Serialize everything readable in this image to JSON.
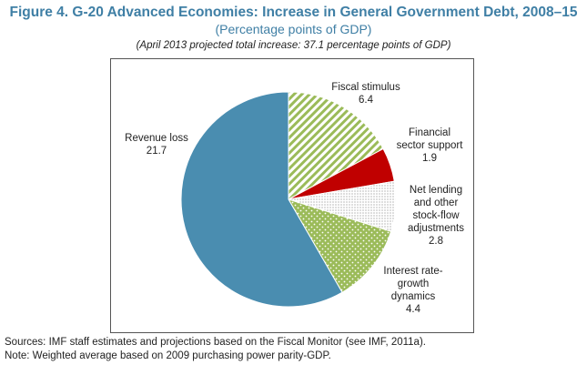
{
  "chart_data": {
    "type": "pie",
    "title": "Figure 4. G-20 Advanced Economies: Increase in General Government Debt, 2008–15",
    "subtitle": "(Percentage points of GDP)",
    "annotation": "(April 2013 projected total increase: 37.1 percentage points of GDP)",
    "slices": [
      {
        "label": "Fiscal stimulus",
        "value": 6.4,
        "value_text": "6.4",
        "color": "#9bbb59",
        "pattern": "diagonal-stripes"
      },
      {
        "label": "Financial sector support",
        "value": 1.9,
        "value_text": "1.9",
        "color": "#c00000",
        "pattern": "solid"
      },
      {
        "label": "Net lending and other stock-flow adjustments",
        "value": 2.8,
        "value_text": "2.8",
        "color": "#bfbfbf",
        "pattern": "fine-dots"
      },
      {
        "label": "Interest rate-growth dynamics",
        "value": 4.4,
        "value_text": "4.4",
        "color": "#9bbb59",
        "pattern": "dots-on-fill"
      },
      {
        "label": "Revenue loss",
        "value": 21.7,
        "value_text": "21.7",
        "color": "#4a8db0",
        "pattern": "solid"
      }
    ],
    "start_angle": "12 o'clock",
    "direction": "clockwise"
  },
  "labels": {
    "fiscal": {
      "lines": [
        "Fiscal stimulus"
      ],
      "value": "6.4"
    },
    "financial": {
      "lines": [
        "Financial",
        "sector support"
      ],
      "value": "1.9"
    },
    "netlending": {
      "lines": [
        "Net lending",
        "and other",
        "stock-flow",
        "adjustments"
      ],
      "value": "2.8"
    },
    "interest": {
      "lines": [
        "Interest rate-",
        "growth",
        "dynamics"
      ],
      "value": "4.4"
    },
    "revenue": {
      "lines": [
        "Revenue loss"
      ],
      "value": "21.7"
    }
  },
  "footnotes": {
    "sources": "Sources: IMF staff estimates and projections based on the Fiscal Monitor (see IMF, 2011a).",
    "note": "Note: Weighted average based on 2009 purchasing power parity-GDP."
  }
}
